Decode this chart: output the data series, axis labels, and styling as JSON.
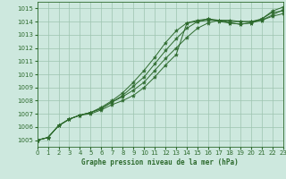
{
  "title": "Graphe pression niveau de la mer (hPa)",
  "background_color": "#cde8de",
  "line_color": "#2d6a2d",
  "grid_color": "#9dc4b0",
  "xlim": [
    0,
    23
  ],
  "ylim": [
    1004.5,
    1015.5
  ],
  "xticks": [
    0,
    1,
    2,
    3,
    4,
    5,
    6,
    7,
    8,
    9,
    10,
    11,
    12,
    13,
    14,
    15,
    16,
    17,
    18,
    19,
    20,
    21,
    22,
    23
  ],
  "yticks": [
    1005,
    1006,
    1007,
    1008,
    1009,
    1010,
    1011,
    1012,
    1013,
    1014,
    1015
  ],
  "series": [
    [
      1005.0,
      1005.2,
      1006.1,
      1006.6,
      1006.9,
      1007.0,
      1007.3,
      1007.7,
      1008.0,
      1008.4,
      1009.0,
      1009.8,
      1010.7,
      1011.5,
      1013.9,
      1014.0,
      1014.1,
      1014.1,
      1014.0,
      1014.0,
      1014.0,
      1014.2,
      1014.7,
      1014.8
    ],
    [
      1005.0,
      1005.2,
      1006.1,
      1006.6,
      1006.9,
      1007.1,
      1007.4,
      1007.9,
      1008.3,
      1008.8,
      1009.4,
      1010.3,
      1011.2,
      1012.0,
      1012.8,
      1013.5,
      1013.9,
      1014.1,
      1014.1,
      1014.0,
      1014.0,
      1014.1,
      1014.4,
      1014.6
    ],
    [
      1005.0,
      1005.2,
      1006.1,
      1006.6,
      1006.9,
      1007.1,
      1007.4,
      1007.9,
      1008.4,
      1009.1,
      1009.8,
      1010.8,
      1011.8,
      1012.7,
      1013.5,
      1014.0,
      1014.2,
      1014.1,
      1013.9,
      1013.8,
      1013.9,
      1014.2,
      1014.8,
      1015.1
    ],
    [
      1005.0,
      1005.2,
      1006.1,
      1006.6,
      1006.9,
      1007.1,
      1007.5,
      1008.0,
      1008.6,
      1009.4,
      1010.3,
      1011.3,
      1012.4,
      1013.3,
      1013.9,
      1014.1,
      1014.2,
      1014.0,
      1013.9,
      1013.8,
      1013.9,
      1014.1,
      1014.5,
      1014.9
    ]
  ]
}
